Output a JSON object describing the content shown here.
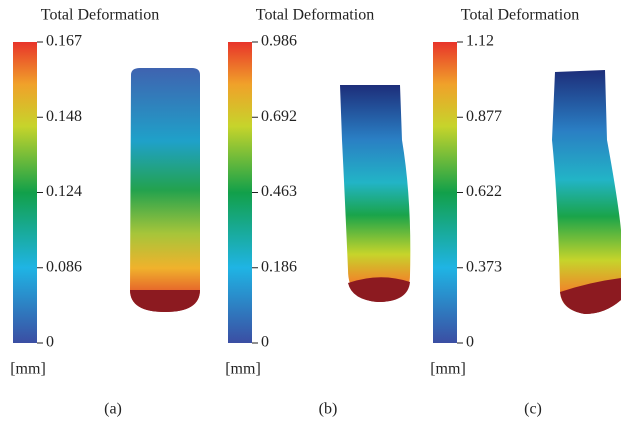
{
  "panels": [
    {
      "title": "Total Deformation",
      "ticks": [
        "0.167",
        "0.148",
        "0.124",
        "0.086",
        "0"
      ],
      "unit": "[mm]",
      "caption": "(a)"
    },
    {
      "title": "Total Deformation",
      "ticks": [
        "0.986",
        "0.692",
        "0.463",
        "0.186",
        "0"
      ],
      "unit": "[mm]",
      "caption": "(b)"
    },
    {
      "title": "Total Deformation",
      "ticks": [
        "1.12",
        "0.877",
        "0.622",
        "0.373",
        "0"
      ],
      "unit": "[mm]",
      "caption": "(c)"
    }
  ]
}
